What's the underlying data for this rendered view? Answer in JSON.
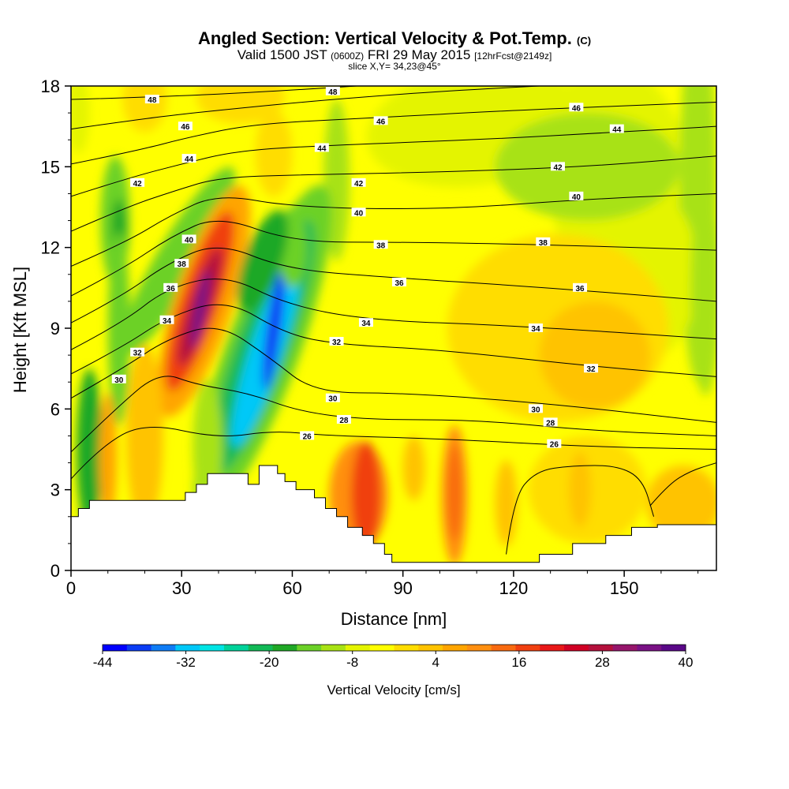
{
  "title": {
    "main": "Angled Section: Vertical Velocity & Pot.Temp.",
    "unit_tag": "(C)",
    "valid_a": "Valid 1500 JST",
    "valid_b": "(0600Z)",
    "valid_c": "FRI 29 May 2015",
    "valid_d": "[12hrFcst@2149z]",
    "slice": "slice X,Y= 34,23@45°"
  },
  "chart_data": {
    "type": "heatmap",
    "title": "Angled Section: Vertical Velocity & Pot.Temp.",
    "xlabel": "Distance [nm]",
    "ylabel": "Height [Kft MSL]",
    "xlim": [
      0,
      175
    ],
    "ylim": [
      0,
      18
    ],
    "x_ticks": [
      0,
      30,
      60,
      90,
      120,
      150
    ],
    "y_ticks": [
      0,
      3,
      6,
      9,
      12,
      15,
      18
    ],
    "colorbar": {
      "label": "Vertical Velocity [cm/s]",
      "tick_labels": [
        -44,
        -32,
        -20,
        -8,
        4,
        16,
        28,
        40
      ],
      "colors": [
        "#0000ff",
        "#0a3cf4",
        "#0f7cf5",
        "#00c8f8",
        "#00e4e4",
        "#00d29a",
        "#12b956",
        "#1fa826",
        "#6cd128",
        "#a8e214",
        "#e4f400",
        "#ffff00",
        "#ffdd00",
        "#ffc300",
        "#ffa500",
        "#ff8f10",
        "#f86a10",
        "#f04010",
        "#e81818",
        "#d00024",
        "#b4103c",
        "#96166c",
        "#7a1285",
        "#5a0888"
      ]
    },
    "contours": {
      "field": "Potential Temperature",
      "unit": "C",
      "labels": [
        {
          "x": 13,
          "y": 7.1,
          "v": "30"
        },
        {
          "x": 18,
          "y": 8.1,
          "v": "32"
        },
        {
          "x": 26,
          "y": 9.3,
          "v": "34"
        },
        {
          "x": 27,
          "y": 10.5,
          "v": "36"
        },
        {
          "x": 30,
          "y": 11.4,
          "v": "38"
        },
        {
          "x": 32,
          "y": 12.3,
          "v": "40"
        },
        {
          "x": 18,
          "y": 14.4,
          "v": "42"
        },
        {
          "x": 32,
          "y": 15.3,
          "v": "44"
        },
        {
          "x": 31,
          "y": 16.5,
          "v": "46"
        },
        {
          "x": 22,
          "y": 17.5,
          "v": "48"
        },
        {
          "x": 71,
          "y": 17.8,
          "v": "48"
        },
        {
          "x": 84,
          "y": 16.7,
          "v": "46"
        },
        {
          "x": 68,
          "y": 15.7,
          "v": "44"
        },
        {
          "x": 78,
          "y": 14.4,
          "v": "42"
        },
        {
          "x": 78,
          "y": 13.3,
          "v": "40"
        },
        {
          "x": 84,
          "y": 12.1,
          "v": "38"
        },
        {
          "x": 89,
          "y": 10.7,
          "v": "36"
        },
        {
          "x": 80,
          "y": 9.2,
          "v": "34"
        },
        {
          "x": 72,
          "y": 8.5,
          "v": "32"
        },
        {
          "x": 71,
          "y": 6.4,
          "v": "30"
        },
        {
          "x": 74,
          "y": 5.6,
          "v": "28"
        },
        {
          "x": 64,
          "y": 5.0,
          "v": "26"
        },
        {
          "x": 137,
          "y": 17.2,
          "v": "46"
        },
        {
          "x": 148,
          "y": 16.4,
          "v": "44"
        },
        {
          "x": 132,
          "y": 15.0,
          "v": "42"
        },
        {
          "x": 137,
          "y": 13.9,
          "v": "40"
        },
        {
          "x": 128,
          "y": 12.2,
          "v": "38"
        },
        {
          "x": 138,
          "y": 10.5,
          "v": "36"
        },
        {
          "x": 126,
          "y": 9.0,
          "v": "34"
        },
        {
          "x": 141,
          "y": 7.5,
          "v": "32"
        },
        {
          "x": 126,
          "y": 6.0,
          "v": "30"
        },
        {
          "x": 130,
          "y": 5.5,
          "v": "28"
        },
        {
          "x": 131,
          "y": 4.7,
          "v": "26"
        }
      ]
    }
  }
}
